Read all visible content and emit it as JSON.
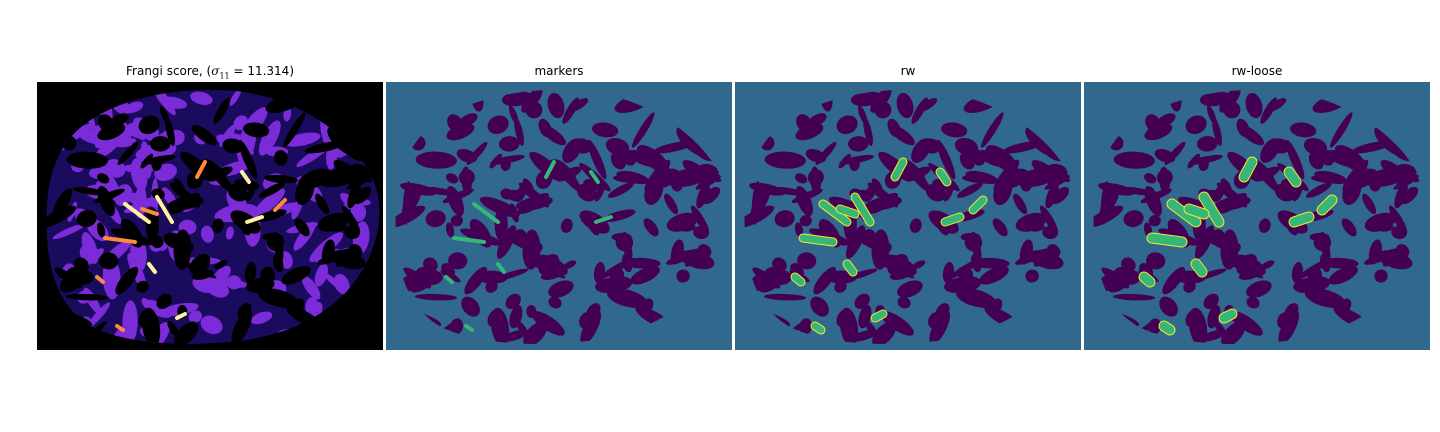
{
  "panels": [
    {
      "title_prefix": "Frangi score, (",
      "title_math_symbol": "σ",
      "title_math_sub": "11",
      "title_math_rest": " = 11.314)",
      "colormap": "magma-like",
      "colors": {
        "background": "#000000",
        "low": "#1a0b5e",
        "mid": "#7b2bd8",
        "high": "#ff8a3d",
        "peak": "#fff3a0"
      }
    },
    {
      "title": "markers",
      "colors": {
        "background": "#31688e",
        "region": "#440154",
        "marker": "#35b779"
      }
    },
    {
      "title": "rw",
      "colors": {
        "background": "#31688e",
        "region": "#440154",
        "vessel": "#35b779",
        "edge": "#fde725"
      }
    },
    {
      "title": "rw-loose",
      "colors": {
        "background": "#31688e",
        "region": "#440154",
        "vessel": "#35b779",
        "edge": "#fde725"
      }
    }
  ]
}
